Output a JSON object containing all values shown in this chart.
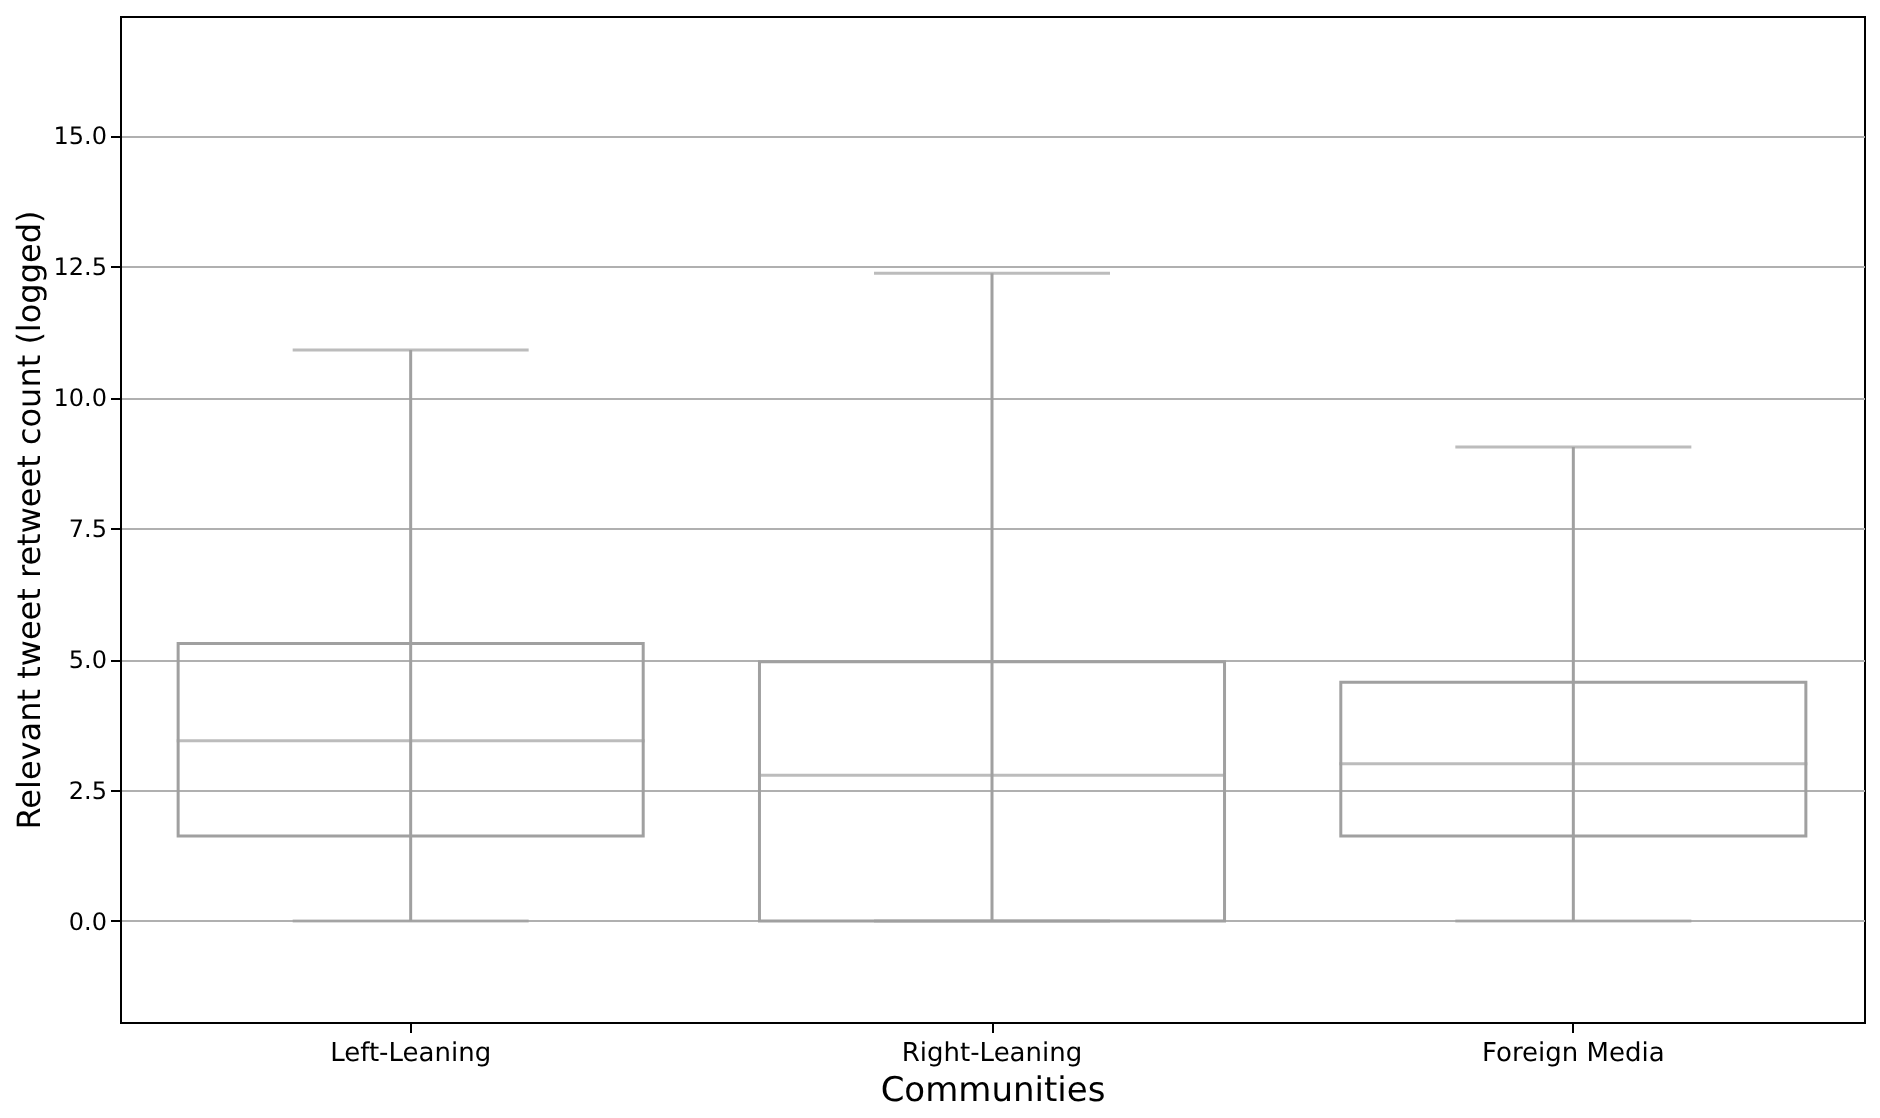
{
  "chart_data": {
    "type": "box",
    "xlabel": "Communities",
    "ylabel": "Relevant tweet retweet count (logged)",
    "categories": [
      "Left-Leaning",
      "Right-Leaning",
      "Foreign Media"
    ],
    "boxes": [
      {
        "low": 0,
        "q1": 1.62,
        "median": 3.44,
        "q3": 5.3,
        "high": 10.9
      },
      {
        "low": 0,
        "q1": 0,
        "median": 2.78,
        "q3": 4.95,
        "high": 12.37
      },
      {
        "low": 0,
        "q1": 1.62,
        "median": 3.0,
        "q3": 4.56,
        "high": 9.05
      }
    ],
    "ylim": [
      -1.93,
      17.28
    ],
    "yticks": [
      {
        "value": 0,
        "label": "0.0"
      },
      {
        "value": 2.5,
        "label": "2.5"
      },
      {
        "value": 5,
        "label": "5.0"
      },
      {
        "value": 7.5,
        "label": "7.5"
      },
      {
        "value": 10,
        "label": "10.0"
      },
      {
        "value": 12.5,
        "label": "12.5"
      },
      {
        "value": 15,
        "label": "15.0"
      }
    ],
    "grid": "y"
  }
}
